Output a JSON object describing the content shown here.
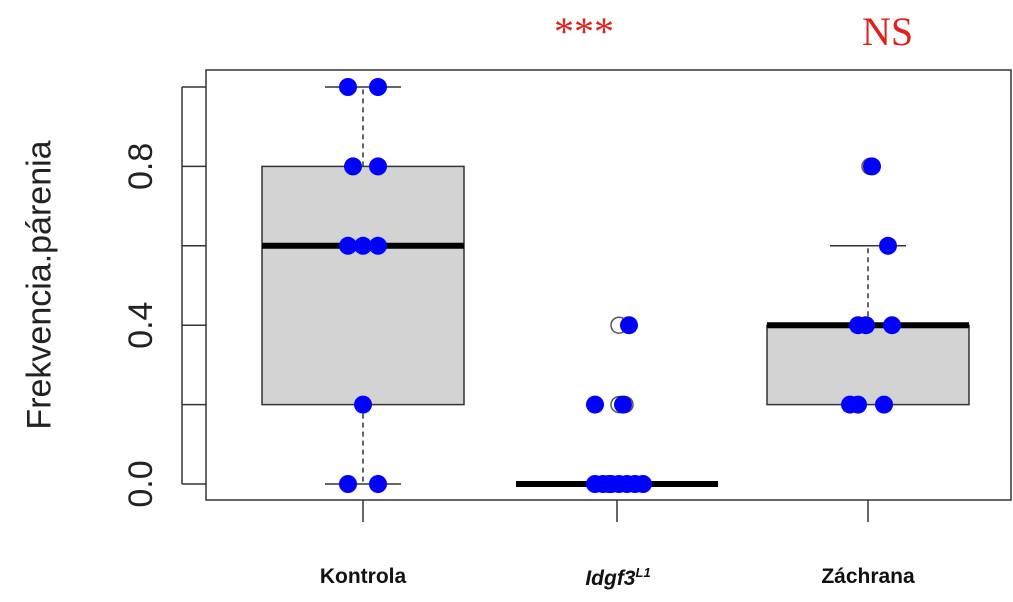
{
  "chart_data": {
    "type": "box",
    "ylabel": "Frekvencia.párenia",
    "ylim": [
      0,
      1
    ],
    "yticks": [
      "0.0",
      "0.4",
      "0.8"
    ],
    "yticks_values": [
      0,
      0.4,
      0.8
    ],
    "grid": false,
    "categories": [
      {
        "label": "Kontrola",
        "italic": false,
        "superscript": ""
      },
      {
        "label": "Idgf3",
        "italic": true,
        "superscript": "L1"
      },
      {
        "label": "Záchrana",
        "italic": false,
        "superscript": ""
      }
    ],
    "boxes": [
      {
        "min": 0.0,
        "q1": 0.2,
        "median": 0.6,
        "q3": 0.8,
        "max": 1.0,
        "outliers": []
      },
      {
        "min": 0.0,
        "q1": 0.0,
        "median": 0.0,
        "q3": 0.0,
        "max": 0.0,
        "outliers": [
          0.2,
          0.2,
          0.4
        ]
      },
      {
        "min": 0.2,
        "q1": 0.2,
        "median": 0.4,
        "q3": 0.4,
        "max": 0.6,
        "outliers": [
          0.8
        ]
      }
    ],
    "points": [
      [
        0.0,
        0.0,
        0.2,
        0.6,
        0.6,
        0.6,
        0.8,
        0.8,
        1.0,
        1.0
      ],
      [
        0.0,
        0.0,
        0.0,
        0.0,
        0.0,
        0.0,
        0.0,
        0.0,
        0.2,
        0.2,
        0.4
      ],
      [
        0.2,
        0.2,
        0.2,
        0.4,
        0.4,
        0.4,
        0.6,
        0.8
      ]
    ],
    "significance": [
      "",
      "***",
      "NS"
    ],
    "colors": {
      "box_fill": "#d3d3d3",
      "points": "#0000ff",
      "significance": "#e0201a"
    }
  }
}
